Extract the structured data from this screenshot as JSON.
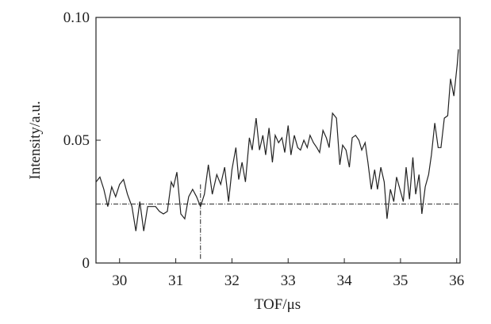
{
  "chart_data": {
    "type": "line",
    "xlabel": "TOF/μs",
    "ylabel": "Intensity/a.u.",
    "x": [
      29.58,
      29.65,
      29.72,
      29.79,
      29.86,
      29.93,
      30.0,
      30.07,
      30.14,
      30.22,
      30.29,
      30.36,
      30.43,
      30.5,
      30.57,
      30.64,
      30.71,
      30.78,
      30.85,
      30.92,
      30.96,
      31.02,
      31.09,
      31.16,
      31.23,
      31.3,
      31.37,
      31.44,
      31.51,
      31.58,
      31.65,
      31.73,
      31.8,
      31.87,
      31.94,
      32.0,
      32.07,
      32.12,
      32.18,
      32.24,
      32.31,
      32.36,
      32.43,
      32.49,
      32.55,
      32.6,
      32.66,
      32.72,
      32.77,
      32.83,
      32.89,
      32.94,
      33.0,
      33.05,
      33.11,
      33.17,
      33.22,
      33.28,
      33.34,
      33.39,
      33.45,
      33.51,
      33.56,
      33.62,
      33.68,
      33.73,
      33.79,
      33.86,
      33.92,
      33.97,
      34.03,
      34.09,
      34.14,
      34.2,
      34.26,
      34.31,
      34.37,
      34.42,
      34.48,
      34.54,
      34.59,
      34.65,
      34.71,
      34.76,
      34.82,
      34.88,
      34.93,
      34.99,
      35.05,
      35.1,
      35.16,
      35.22,
      35.27,
      35.33,
      35.38,
      35.44,
      35.5,
      35.55,
      35.61,
      35.67,
      35.72,
      35.78,
      35.84,
      35.89,
      35.95,
      36.01,
      36.03
    ],
    "series": [
      {
        "color": "#222222",
        "values": [
          0.033,
          0.035,
          0.03,
          0.023,
          0.031,
          0.027,
          0.032,
          0.034,
          0.028,
          0.023,
          0.013,
          0.025,
          0.013,
          0.023,
          0.023,
          0.023,
          0.021,
          0.02,
          0.021,
          0.033,
          0.031,
          0.037,
          0.02,
          0.018,
          0.027,
          0.03,
          0.027,
          0.023,
          0.028,
          0.04,
          0.028,
          0.036,
          0.032,
          0.039,
          0.025,
          0.038,
          0.047,
          0.034,
          0.041,
          0.033,
          0.051,
          0.046,
          0.059,
          0.046,
          0.052,
          0.044,
          0.055,
          0.041,
          0.052,
          0.049,
          0.051,
          0.045,
          0.056,
          0.044,
          0.052,
          0.047,
          0.046,
          0.05,
          0.047,
          0.052,
          0.049,
          0.047,
          0.045,
          0.054,
          0.051,
          0.047,
          0.061,
          0.059,
          0.04,
          0.048,
          0.046,
          0.039,
          0.051,
          0.052,
          0.05,
          0.046,
          0.049,
          0.041,
          0.03,
          0.038,
          0.03,
          0.039,
          0.033,
          0.018,
          0.03,
          0.025,
          0.035,
          0.03,
          0.025,
          0.039,
          0.026,
          0.043,
          0.028,
          0.036,
          0.02,
          0.031,
          0.036,
          0.044,
          0.057,
          0.047,
          0.047,
          0.059,
          0.06,
          0.075,
          0.068,
          0.081,
          0.087
        ]
      }
    ],
    "xlim": [
      29.58,
      36.06
    ],
    "ylim": [
      0,
      0.1
    ],
    "xticks": [
      30,
      31,
      32,
      33,
      34,
      35,
      36
    ],
    "yticks": [
      0,
      0.05,
      {
        "value": 0.1,
        "label": "0.10"
      }
    ],
    "reference_lines": {
      "h": 0.024,
      "v": 31.44,
      "v_top": 0.032
    }
  }
}
